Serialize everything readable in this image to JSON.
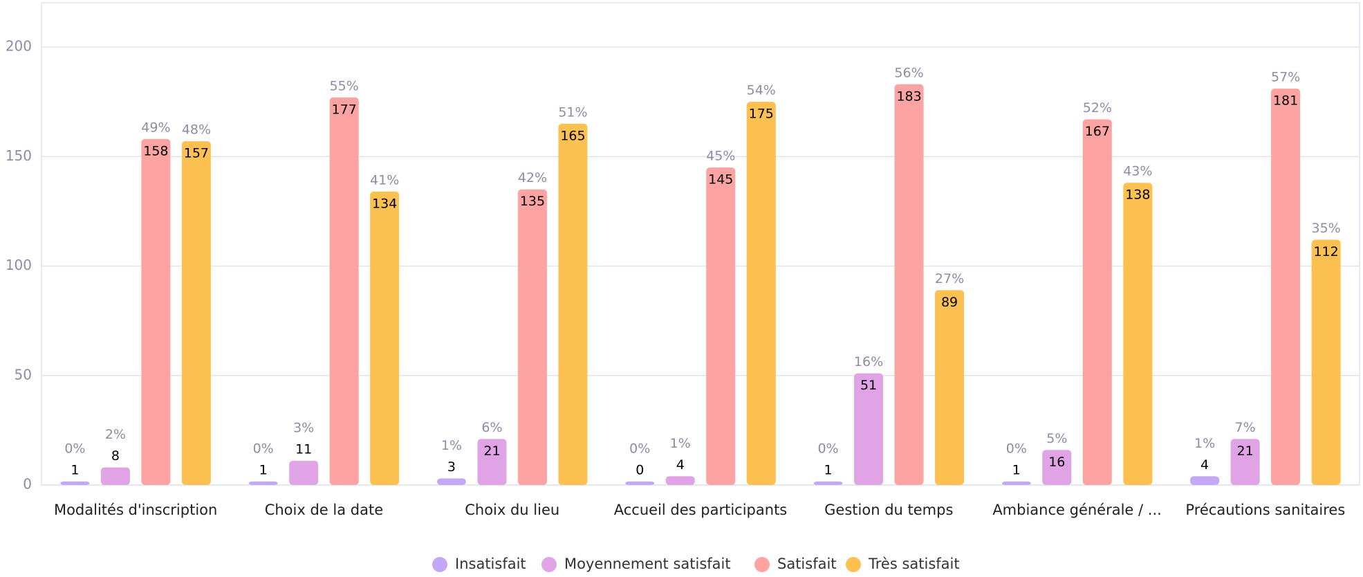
{
  "chart_data": {
    "type": "bar",
    "categories": [
      "Modalités d'inscription",
      "Choix de la date",
      "Choix du lieu",
      "Accueil des participants",
      "Gestion du temps",
      "Ambiance générale / ...",
      "Précautions sanitaires"
    ],
    "series": [
      {
        "name": "Insatisfait",
        "color": "#c4a8f6",
        "values": [
          1,
          1,
          3,
          0,
          1,
          1,
          4
        ],
        "percent_labels": [
          "0%",
          "0%",
          "1%",
          "0%",
          "0%",
          "0%",
          "1%"
        ]
      },
      {
        "name": "Moyennement satisfait",
        "color": "#e0a3e6",
        "values": [
          8,
          11,
          21,
          4,
          51,
          16,
          21
        ],
        "percent_labels": [
          "2%",
          "3%",
          "6%",
          "1%",
          "16%",
          "5%",
          "7%"
        ]
      },
      {
        "name": "Satisfait",
        "color": "#fda3a2",
        "values": [
          158,
          177,
          135,
          145,
          183,
          167,
          181
        ],
        "percent_labels": [
          "49%",
          "55%",
          "42%",
          "45%",
          "56%",
          "52%",
          "57%"
        ]
      },
      {
        "name": "Très satisfait",
        "color": "#fdc151",
        "values": [
          157,
          134,
          165,
          175,
          89,
          138,
          112
        ],
        "percent_labels": [
          "48%",
          "41%",
          "51%",
          "54%",
          "27%",
          "43%",
          "35%"
        ]
      }
    ],
    "ylim": [
      0,
      200
    ],
    "yticks": [
      0,
      50,
      100,
      150,
      200
    ],
    "grid": true,
    "legend": "bottom"
  }
}
